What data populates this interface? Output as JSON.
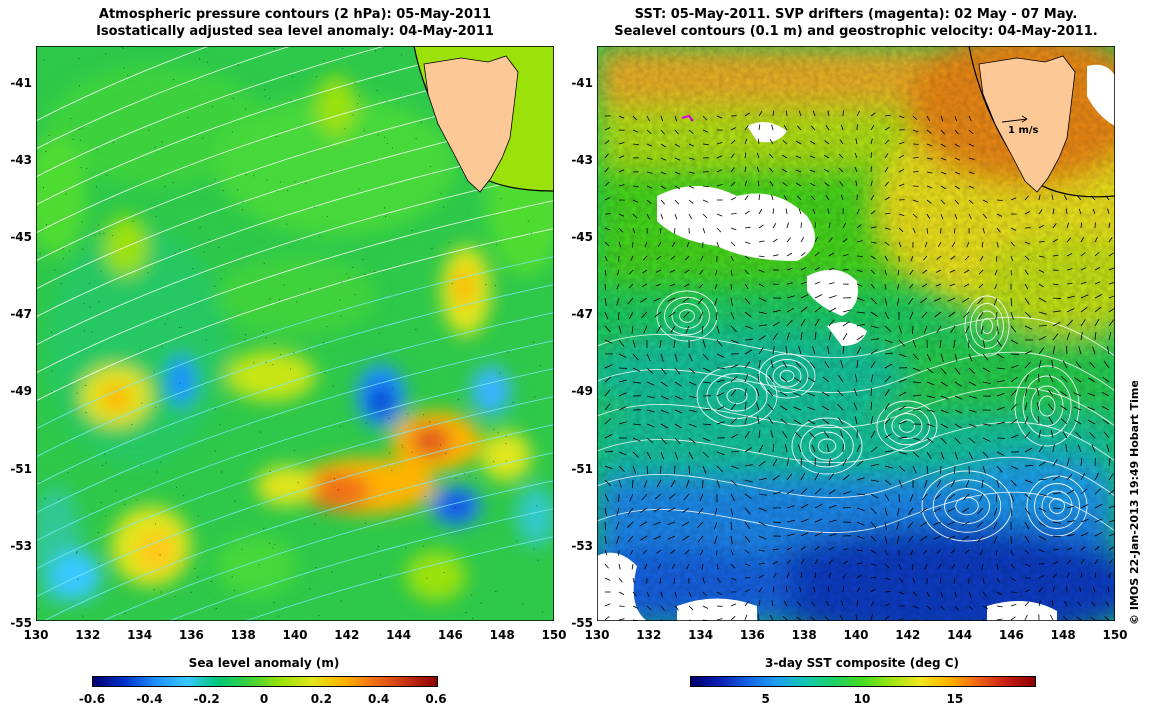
{
  "left_panel": {
    "title_line1": "Atmospheric pressure contours (2 hPa): 05-May-2011",
    "title_line2": "Isostatically adjusted sea level anomaly: 04-May-2011",
    "colorbar_label": "Sea level anomaly (m)",
    "colorbar_ticks": [
      "-0.6",
      "-0.4",
      "-0.2",
      "0",
      "0.2",
      "0.4",
      "0.6"
    ],
    "colormap": [
      "#00006e",
      "#0030c8",
      "#1e90ff",
      "#38c8ff",
      "#00c878",
      "#3cd23c",
      "#9be10a",
      "#e1e61e",
      "#ffb400",
      "#f06e14",
      "#c83214",
      "#8c0000"
    ]
  },
  "right_panel": {
    "title_line1": "SST: 05-May-2011. SVP drifters (magenta): 02 May - 07 May.",
    "title_line2": "Sealevel contours (0.1 m) and geostrophic velocity: 04-May-2011.",
    "colorbar_label": "3-day SST composite (deg C)",
    "colorbar_ticks": [
      "5",
      "10",
      "15"
    ],
    "colormap": [
      "#00006e",
      "#0a1eb4",
      "#1464e6",
      "#1ea0f0",
      "#14c8b4",
      "#1ed264",
      "#46dc1e",
      "#a0e614",
      "#f0e61e",
      "#ffb400",
      "#f06414",
      "#c81e14",
      "#8c0000"
    ],
    "scale_label": "1 m/s",
    "credit": "© IMOS 22-Jan-2013 19:49 Hobart Time"
  },
  "axes": {
    "x_ticks": [
      "130",
      "132",
      "134",
      "136",
      "138",
      "140",
      "142",
      "144",
      "146",
      "148",
      "150"
    ],
    "y_ticks": [
      "-41",
      "-43",
      "-45",
      "-47",
      "-49",
      "-51",
      "-53",
      "-55"
    ]
  },
  "colors": {
    "land": "#fcc896",
    "contour_white": "#ffffff",
    "contour_cyan": "#80e8ff",
    "vector": "#000000",
    "missing": "#ffffff"
  }
}
